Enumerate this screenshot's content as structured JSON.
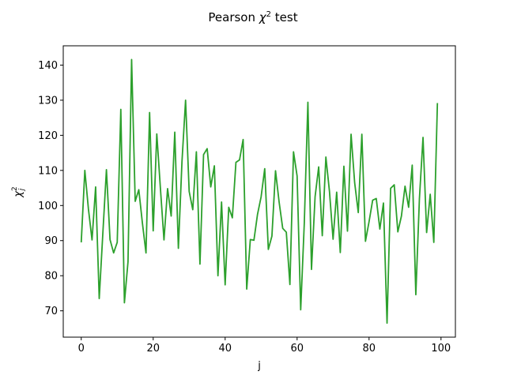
{
  "chart_data": {
    "type": "line",
    "title": "Pearson χ² test",
    "title_parts": {
      "main": "Pearson ",
      "symbol": "χ",
      "sup": "2",
      "rest": " test"
    },
    "xlabel": "j",
    "ylabel": "χ²ⱼ",
    "ylabel_parts": {
      "symbol": "χ",
      "sup": "2",
      "sub": "j"
    },
    "xlim": [
      -5,
      104
    ],
    "ylim": [
      62.5,
      145.5
    ],
    "xticks": [
      0,
      20,
      40,
      60,
      80,
      100
    ],
    "yticks": [
      70,
      80,
      90,
      100,
      110,
      120,
      130,
      140
    ],
    "grid": false,
    "series": [
      {
        "color": "#2ca02c",
        "x": [
          0,
          1,
          2,
          3,
          4,
          5,
          6,
          7,
          8,
          9,
          10,
          11,
          12,
          13,
          14,
          15,
          16,
          17,
          18,
          19,
          20,
          21,
          22,
          23,
          24,
          25,
          26,
          27,
          28,
          29,
          30,
          31,
          32,
          33,
          34,
          35,
          36,
          37,
          38,
          39,
          40,
          41,
          42,
          43,
          44,
          45,
          46,
          47,
          48,
          49,
          50,
          51,
          52,
          53,
          54,
          55,
          56,
          57,
          58,
          59,
          60,
          61,
          62,
          63,
          64,
          65,
          66,
          67,
          68,
          69,
          70,
          71,
          72,
          73,
          74,
          75,
          76,
          77,
          78,
          79,
          80,
          81,
          82,
          83,
          84,
          85,
          86,
          87,
          88,
          89,
          90,
          91,
          92,
          93,
          94,
          95,
          96,
          97,
          98,
          99
        ],
        "y": [
          89.5,
          110.0,
          99.0,
          90.2,
          105.3,
          73.5,
          92.0,
          110.2,
          90.3,
          86.5,
          89.5,
          127.4,
          72.3,
          84.0,
          141.6,
          101.2,
          104.5,
          95.0,
          86.5,
          126.5,
          92.8,
          120.4,
          105.0,
          90.2,
          104.8,
          97.0,
          120.9,
          87.8,
          112.5,
          130.0,
          104.0,
          98.8,
          115.3,
          83.3,
          114.5,
          116.2,
          105.3,
          111.3,
          80.0,
          101.0,
          77.4,
          99.5,
          96.5,
          112.3,
          113.0,
          118.8,
          76.2,
          90.3,
          90.1,
          97.5,
          102.5,
          110.5,
          87.5,
          91.3,
          109.9,
          101.0,
          93.5,
          92.4,
          77.5,
          115.3,
          108.4,
          70.3,
          95.0,
          129.4,
          81.8,
          102.5,
          111.0,
          91.4,
          113.8,
          104.0,
          90.4,
          103.8,
          86.6,
          111.2,
          92.7,
          120.3,
          106.5,
          98.0,
          120.3,
          89.8,
          95.4,
          101.5,
          102.0,
          93.3,
          100.7,
          66.5,
          104.9,
          105.9,
          92.5,
          97.0,
          105.5,
          99.5,
          111.5,
          74.6,
          102.0,
          119.4,
          92.3,
          103.2,
          89.5,
          129.2
        ]
      }
    ]
  }
}
